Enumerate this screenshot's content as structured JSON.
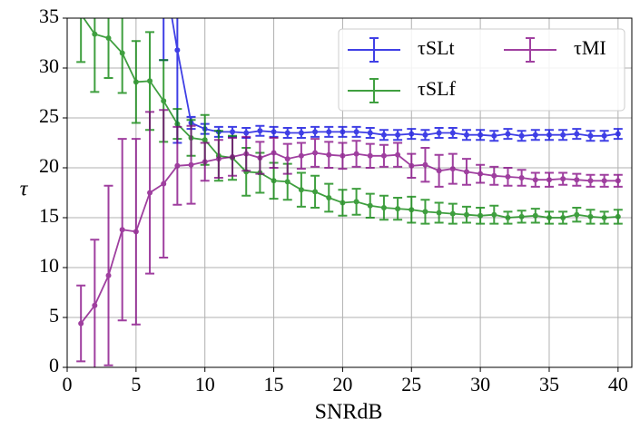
{
  "chart_data": {
    "type": "errorbar_line",
    "xlabel": "SNRdB",
    "ylabel": "τ",
    "x": [
      1,
      2,
      3,
      4,
      5,
      6,
      7,
      8,
      9,
      10,
      11,
      12,
      13,
      14,
      15,
      16,
      17,
      18,
      19,
      20,
      21,
      22,
      23,
      24,
      25,
      26,
      27,
      28,
      29,
      30,
      31,
      32,
      33,
      34,
      35,
      36,
      37,
      38,
      39,
      40
    ],
    "series": [
      {
        "name": "τSLt",
        "color": "#0000dd",
        "values": [
          null,
          null,
          null,
          null,
          null,
          null,
          40,
          31.8,
          24.5,
          23.9,
          23.6,
          23.6,
          23.5,
          23.7,
          23.6,
          23.5,
          23.5,
          23.6,
          23.6,
          23.6,
          23.6,
          23.5,
          23.3,
          23.3,
          23.4,
          23.3,
          23.5,
          23.5,
          23.3,
          23.3,
          23.2,
          23.4,
          23.2,
          23.3,
          23.3,
          23.3,
          23.4,
          23.2,
          23.2,
          23.4
        ],
        "errors": [
          null,
          null,
          null,
          null,
          null,
          null,
          9.2,
          9.3,
          0.6,
          0.5,
          0.5,
          0.5,
          0.5,
          0.5,
          0.5,
          0.5,
          0.5,
          0.5,
          0.5,
          0.5,
          0.5,
          0.5,
          0.5,
          0.5,
          0.5,
          0.5,
          0.5,
          0.5,
          0.5,
          0.5,
          0.5,
          0.5,
          0.5,
          0.5,
          0.5,
          0.5,
          0.5,
          0.5,
          0.5,
          0.5
        ]
      },
      {
        "name": "τSLf",
        "color": "#008000",
        "values": [
          35.4,
          33.4,
          33.0,
          31.5,
          28.6,
          28.7,
          26.7,
          24.4,
          23.0,
          22.8,
          21.2,
          21.0,
          19.6,
          19.5,
          18.7,
          18.6,
          17.8,
          17.6,
          17.0,
          16.5,
          16.6,
          16.2,
          16.0,
          15.9,
          15.8,
          15.6,
          15.5,
          15.4,
          15.3,
          15.2,
          15.3,
          15.0,
          15.1,
          15.2,
          15.0,
          15.0,
          15.3,
          15.1,
          15.0,
          15.1
        ],
        "errors": [
          4.8,
          5.8,
          4.0,
          4.0,
          4.1,
          4.9,
          4.1,
          1.5,
          1.8,
          2.5,
          2.5,
          2.2,
          2.4,
          2.0,
          1.8,
          1.8,
          1.7,
          1.6,
          1.4,
          1.3,
          1.3,
          1.2,
          1.2,
          1.1,
          1.3,
          1.2,
          1.0,
          1.0,
          0.8,
          0.8,
          0.9,
          0.6,
          0.6,
          0.7,
          0.6,
          0.6,
          0.7,
          0.7,
          0.6,
          0.7
        ]
      },
      {
        "name": "τMI",
        "color": "#800080",
        "values": [
          4.4,
          6.2,
          9.2,
          13.8,
          13.6,
          17.5,
          18.4,
          20.2,
          20.3,
          20.6,
          20.9,
          21.1,
          21.4,
          21.0,
          21.5,
          20.9,
          21.2,
          21.5,
          21.3,
          21.2,
          21.4,
          21.2,
          21.2,
          21.3,
          20.2,
          20.3,
          19.7,
          19.9,
          19.6,
          19.4,
          19.2,
          19.1,
          19.0,
          18.8,
          18.8,
          18.9,
          18.8,
          18.7,
          18.7,
          18.7
        ],
        "errors": [
          3.8,
          6.6,
          9.0,
          9.1,
          9.3,
          8.1,
          7.4,
          3.9,
          3.9,
          1.9,
          1.9,
          1.9,
          1.7,
          1.6,
          1.5,
          1.5,
          1.3,
          1.4,
          1.3,
          1.3,
          1.3,
          1.2,
          1.1,
          1.2,
          1.2,
          1.7,
          1.6,
          1.5,
          1.3,
          0.9,
          0.9,
          0.9,
          0.8,
          0.7,
          0.7,
          0.6,
          0.6,
          0.6,
          0.6,
          0.6
        ]
      }
    ],
    "xlim": [
      0,
      41
    ],
    "ylim": [
      0,
      35
    ],
    "xticks": [
      0,
      5,
      10,
      15,
      20,
      25,
      30,
      35,
      40
    ],
    "yticks": [
      0,
      5,
      10,
      15,
      20,
      25,
      30,
      35
    ],
    "grid": true,
    "legend": "upper right"
  }
}
